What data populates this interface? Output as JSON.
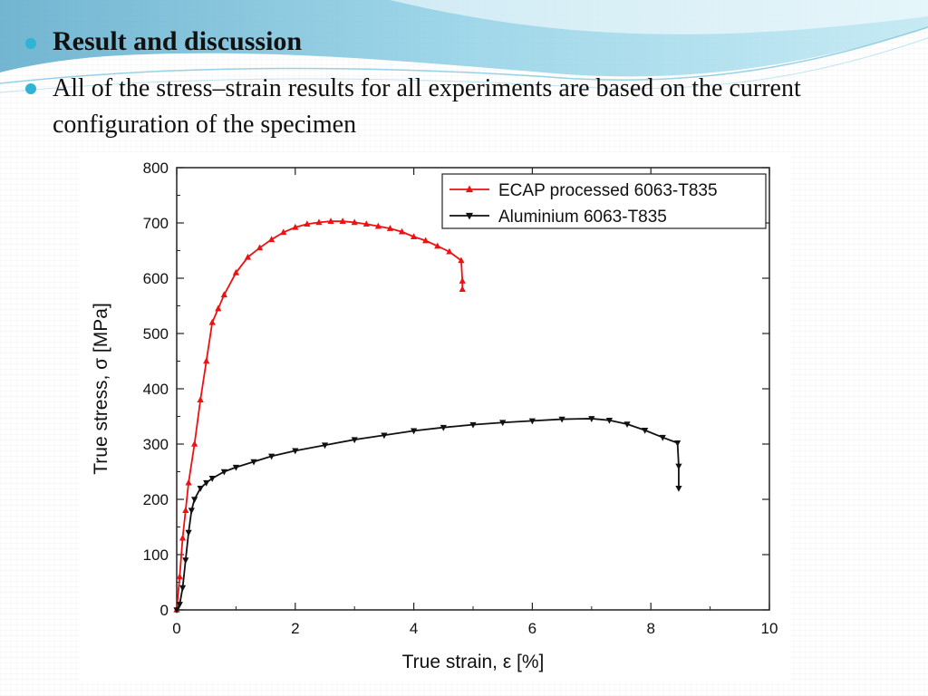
{
  "slide": {
    "title": "Result and discussion",
    "body": "All of the stress–strain results for all experiments are based on the current configuration of the specimen",
    "bullet_color": "#30b4d6"
  },
  "chart_data": {
    "type": "line",
    "xlabel": "True strain, ε [%]",
    "ylabel": "True stress, σ [MPa]",
    "xlim": [
      0,
      10
    ],
    "ylim": [
      0,
      800
    ],
    "xticks": [
      "0",
      "2",
      "4",
      "6",
      "8",
      "10"
    ],
    "yticks": [
      "0",
      "100",
      "200",
      "300",
      "400",
      "500",
      "600",
      "700",
      "800"
    ],
    "grid": false,
    "legend_position": "top-right",
    "series": [
      {
        "name": "ECAP processed 6063-T835",
        "color": "#ee1111",
        "marker": "triangle-up",
        "x": [
          0,
          0.05,
          0.1,
          0.15,
          0.2,
          0.3,
          0.4,
          0.5,
          0.6,
          0.7,
          0.8,
          1.0,
          1.2,
          1.4,
          1.6,
          1.8,
          2.0,
          2.2,
          2.4,
          2.6,
          2.8,
          3.0,
          3.2,
          3.4,
          3.6,
          3.8,
          4.0,
          4.2,
          4.4,
          4.6,
          4.8,
          4.82,
          4.82
        ],
        "y": [
          0,
          60,
          130,
          180,
          230,
          300,
          380,
          450,
          520,
          545,
          570,
          610,
          638,
          655,
          670,
          683,
          692,
          698,
          701,
          703,
          703,
          701,
          698,
          694,
          690,
          684,
          675,
          668,
          658,
          648,
          632,
          595,
          580
        ]
      },
      {
        "name": "Aluminium 6063-T835",
        "color": "#111111",
        "marker": "triangle-down",
        "x": [
          0,
          0.05,
          0.1,
          0.15,
          0.2,
          0.25,
          0.3,
          0.4,
          0.5,
          0.6,
          0.8,
          1.0,
          1.3,
          1.6,
          2.0,
          2.5,
          3.0,
          3.5,
          4.0,
          4.5,
          5.0,
          5.5,
          6.0,
          6.5,
          7.0,
          7.3,
          7.6,
          7.9,
          8.2,
          8.45,
          8.47,
          8.47
        ],
        "y": [
          0,
          10,
          40,
          90,
          140,
          180,
          200,
          220,
          230,
          238,
          250,
          258,
          268,
          278,
          288,
          298,
          308,
          316,
          324,
          330,
          335,
          339,
          342,
          345,
          346,
          343,
          336,
          325,
          312,
          302,
          260,
          220
        ]
      }
    ]
  }
}
